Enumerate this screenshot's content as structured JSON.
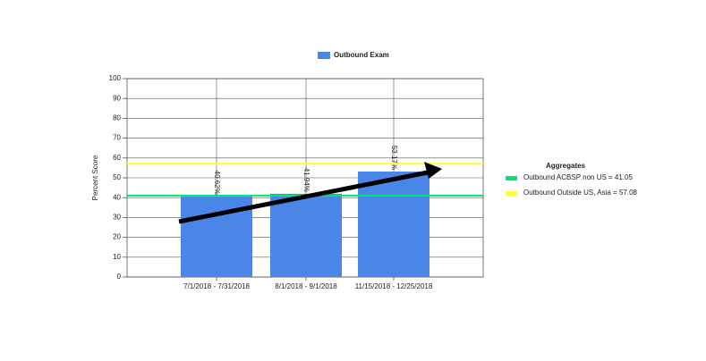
{
  "chart_data": {
    "type": "bar",
    "categories": [
      "7/1/2018 - 7/31/2018",
      "8/1/2018 - 9/1/2018",
      "11/15/2018 - 12/25/2018"
    ],
    "series": [
      {
        "name": "Outbound Exam",
        "color": "#4a86e8",
        "values": [
          40.62,
          41.94,
          53.17
        ],
        "value_labels": [
          "40.62%",
          "41.94%",
          "53.17%"
        ]
      }
    ],
    "y_label": "Percent Score",
    "ylim": [
      0,
      100
    ],
    "yticks": [
      0,
      10,
      20,
      30,
      40,
      50,
      60,
      70,
      80,
      90,
      100
    ],
    "grid": true,
    "aggregates": {
      "title": "Aggregates",
      "lines": [
        {
          "label": "Outbound ACBSP non  US = 41.05",
          "value": 41.05,
          "color": "#00e676"
        },
        {
          "label": "Outbound Outside US,  Asia = 57.08",
          "value": 57.08,
          "color": "#ffff33"
        }
      ]
    }
  }
}
